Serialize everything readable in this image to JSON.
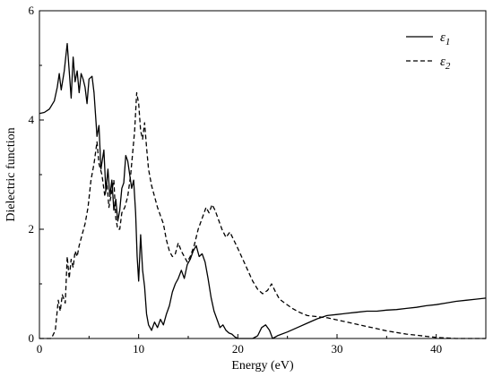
{
  "chart_data": {
    "type": "line",
    "title": "",
    "xlabel": "Energy (eV)",
    "ylabel": "Dielectric function",
    "xlim": [
      0,
      45
    ],
    "ylim": [
      0,
      6
    ],
    "xticks": [
      0,
      10,
      20,
      30,
      40
    ],
    "yticks": [
      0,
      2,
      4,
      6
    ],
    "xtick_labels": [
      "0",
      "10",
      "20",
      "30",
      "40"
    ],
    "ytick_labels": [
      "0",
      "2",
      "4",
      "6"
    ],
    "grid": false,
    "legend_position": "top-right",
    "series": [
      {
        "name_symbol": "ε",
        "name_subscript": "1",
        "style": "solid",
        "color": "#000000",
        "points": [
          [
            0,
            4.12
          ],
          [
            0.5,
            4.14
          ],
          [
            1.0,
            4.2
          ],
          [
            1.5,
            4.35
          ],
          [
            1.8,
            4.6
          ],
          [
            2.0,
            4.85
          ],
          [
            2.2,
            4.55
          ],
          [
            2.5,
            4.9
          ],
          [
            2.8,
            5.4
          ],
          [
            3.0,
            4.9
          ],
          [
            3.2,
            4.4
          ],
          [
            3.4,
            5.15
          ],
          [
            3.6,
            4.7
          ],
          [
            3.8,
            4.9
          ],
          [
            4.0,
            4.5
          ],
          [
            4.2,
            4.85
          ],
          [
            4.4,
            4.75
          ],
          [
            4.6,
            4.6
          ],
          [
            4.8,
            4.3
          ],
          [
            5.0,
            4.75
          ],
          [
            5.3,
            4.8
          ],
          [
            5.5,
            4.5
          ],
          [
            5.8,
            3.7
          ],
          [
            6.0,
            3.9
          ],
          [
            6.2,
            3.1
          ],
          [
            6.5,
            3.45
          ],
          [
            6.7,
            2.7
          ],
          [
            6.9,
            3.1
          ],
          [
            7.1,
            2.6
          ],
          [
            7.3,
            2.9
          ],
          [
            7.5,
            2.35
          ],
          [
            7.7,
            2.55
          ],
          [
            7.9,
            2.15
          ],
          [
            8.1,
            2.35
          ],
          [
            8.3,
            2.75
          ],
          [
            8.5,
            2.85
          ],
          [
            8.7,
            3.35
          ],
          [
            8.9,
            3.25
          ],
          [
            9.1,
            3.0
          ],
          [
            9.3,
            2.75
          ],
          [
            9.5,
            2.9
          ],
          [
            9.7,
            2.3
          ],
          [
            9.85,
            1.5
          ],
          [
            10.0,
            1.05
          ],
          [
            10.2,
            1.9
          ],
          [
            10.4,
            1.25
          ],
          [
            10.6,
            0.95
          ],
          [
            10.8,
            0.45
          ],
          [
            11.0,
            0.25
          ],
          [
            11.3,
            0.15
          ],
          [
            11.6,
            0.3
          ],
          [
            11.9,
            0.2
          ],
          [
            12.2,
            0.35
          ],
          [
            12.5,
            0.25
          ],
          [
            12.8,
            0.45
          ],
          [
            13.1,
            0.6
          ],
          [
            13.4,
            0.85
          ],
          [
            13.7,
            1.0
          ],
          [
            14.0,
            1.1
          ],
          [
            14.3,
            1.25
          ],
          [
            14.6,
            1.1
          ],
          [
            14.9,
            1.35
          ],
          [
            15.2,
            1.45
          ],
          [
            15.5,
            1.6
          ],
          [
            15.8,
            1.7
          ],
          [
            16.1,
            1.5
          ],
          [
            16.4,
            1.55
          ],
          [
            16.7,
            1.4
          ],
          [
            17.0,
            1.1
          ],
          [
            17.3,
            0.75
          ],
          [
            17.6,
            0.5
          ],
          [
            17.9,
            0.35
          ],
          [
            18.2,
            0.2
          ],
          [
            18.5,
            0.25
          ],
          [
            18.8,
            0.15
          ],
          [
            19.1,
            0.1
          ],
          [
            19.4,
            0.08
          ],
          [
            19.7,
            0.03
          ],
          [
            20.0,
            0.0
          ],
          [
            21.5,
            0.0
          ],
          [
            22.0,
            0.05
          ],
          [
            22.4,
            0.2
          ],
          [
            22.8,
            0.25
          ],
          [
            23.2,
            0.15
          ],
          [
            23.5,
            0.0
          ],
          [
            24.0,
            0.05
          ],
          [
            25.0,
            0.12
          ],
          [
            26.0,
            0.2
          ],
          [
            27.0,
            0.28
          ],
          [
            28.0,
            0.36
          ],
          [
            29.0,
            0.42
          ],
          [
            30.0,
            0.44
          ],
          [
            31.0,
            0.46
          ],
          [
            32.0,
            0.48
          ],
          [
            33.0,
            0.5
          ],
          [
            34.0,
            0.5
          ],
          [
            35.0,
            0.52
          ],
          [
            36.0,
            0.53
          ],
          [
            37.0,
            0.55
          ],
          [
            38.0,
            0.57
          ],
          [
            39.0,
            0.6
          ],
          [
            40.0,
            0.62
          ],
          [
            41.0,
            0.65
          ],
          [
            42.0,
            0.68
          ],
          [
            43.0,
            0.7
          ],
          [
            44.0,
            0.72
          ],
          [
            45.0,
            0.74
          ]
        ]
      },
      {
        "name_symbol": "ε",
        "name_subscript": "2",
        "style": "dashed",
        "color": "#000000",
        "points": [
          [
            0,
            0.0
          ],
          [
            1.2,
            0.0
          ],
          [
            1.6,
            0.15
          ],
          [
            1.9,
            0.7
          ],
          [
            2.1,
            0.5
          ],
          [
            2.3,
            0.8
          ],
          [
            2.6,
            0.65
          ],
          [
            2.8,
            1.5
          ],
          [
            3.0,
            1.1
          ],
          [
            3.2,
            1.45
          ],
          [
            3.4,
            1.3
          ],
          [
            3.6,
            1.6
          ],
          [
            3.8,
            1.5
          ],
          [
            4.0,
            1.7
          ],
          [
            4.3,
            1.9
          ],
          [
            4.6,
            2.1
          ],
          [
            4.9,
            2.4
          ],
          [
            5.2,
            2.9
          ],
          [
            5.5,
            3.2
          ],
          [
            5.8,
            3.6
          ],
          [
            6.0,
            3.2
          ],
          [
            6.3,
            3.0
          ],
          [
            6.6,
            2.6
          ],
          [
            6.8,
            2.85
          ],
          [
            7.0,
            2.4
          ],
          [
            7.2,
            2.6
          ],
          [
            7.5,
            2.9
          ],
          [
            7.7,
            2.2
          ],
          [
            7.9,
            2.0
          ],
          [
            8.1,
            2.0
          ],
          [
            8.3,
            2.3
          ],
          [
            8.6,
            2.4
          ],
          [
            8.9,
            2.6
          ],
          [
            9.2,
            3.0
          ],
          [
            9.4,
            3.4
          ],
          [
            9.6,
            3.8
          ],
          [
            9.8,
            4.5
          ],
          [
            10.0,
            4.3
          ],
          [
            10.2,
            3.8
          ],
          [
            10.4,
            3.65
          ],
          [
            10.6,
            3.95
          ],
          [
            10.8,
            3.5
          ],
          [
            11.0,
            3.1
          ],
          [
            11.3,
            2.8
          ],
          [
            11.6,
            2.6
          ],
          [
            11.9,
            2.4
          ],
          [
            12.2,
            2.25
          ],
          [
            12.5,
            2.1
          ],
          [
            12.8,
            1.8
          ],
          [
            13.1,
            1.6
          ],
          [
            13.4,
            1.5
          ],
          [
            13.7,
            1.55
          ],
          [
            14.0,
            1.75
          ],
          [
            14.3,
            1.6
          ],
          [
            14.6,
            1.5
          ],
          [
            14.9,
            1.4
          ],
          [
            15.2,
            1.5
          ],
          [
            15.6,
            1.7
          ],
          [
            16.0,
            2.0
          ],
          [
            16.4,
            2.2
          ],
          [
            16.8,
            2.4
          ],
          [
            17.1,
            2.3
          ],
          [
            17.4,
            2.45
          ],
          [
            17.7,
            2.35
          ],
          [
            18.0,
            2.2
          ],
          [
            18.4,
            2.0
          ],
          [
            18.8,
            1.85
          ],
          [
            19.2,
            1.95
          ],
          [
            19.6,
            1.8
          ],
          [
            20.0,
            1.65
          ],
          [
            20.5,
            1.45
          ],
          [
            21.0,
            1.25
          ],
          [
            21.5,
            1.05
          ],
          [
            22.0,
            0.9
          ],
          [
            22.5,
            0.82
          ],
          [
            23.0,
            0.88
          ],
          [
            23.4,
            1.0
          ],
          [
            23.8,
            0.85
          ],
          [
            24.2,
            0.72
          ],
          [
            24.8,
            0.64
          ],
          [
            25.5,
            0.55
          ],
          [
            26.2,
            0.48
          ],
          [
            27.0,
            0.42
          ],
          [
            28.0,
            0.4
          ],
          [
            29.0,
            0.38
          ],
          [
            30.0,
            0.34
          ],
          [
            31.0,
            0.3
          ],
          [
            32.0,
            0.26
          ],
          [
            33.0,
            0.22
          ],
          [
            34.0,
            0.18
          ],
          [
            35.0,
            0.14
          ],
          [
            36.0,
            0.11
          ],
          [
            37.0,
            0.08
          ],
          [
            38.0,
            0.06
          ],
          [
            39.0,
            0.04
          ],
          [
            40.0,
            0.02
          ],
          [
            41.0,
            0.01
          ],
          [
            42.0,
            0.0
          ],
          [
            45.0,
            0.0
          ]
        ]
      }
    ]
  }
}
